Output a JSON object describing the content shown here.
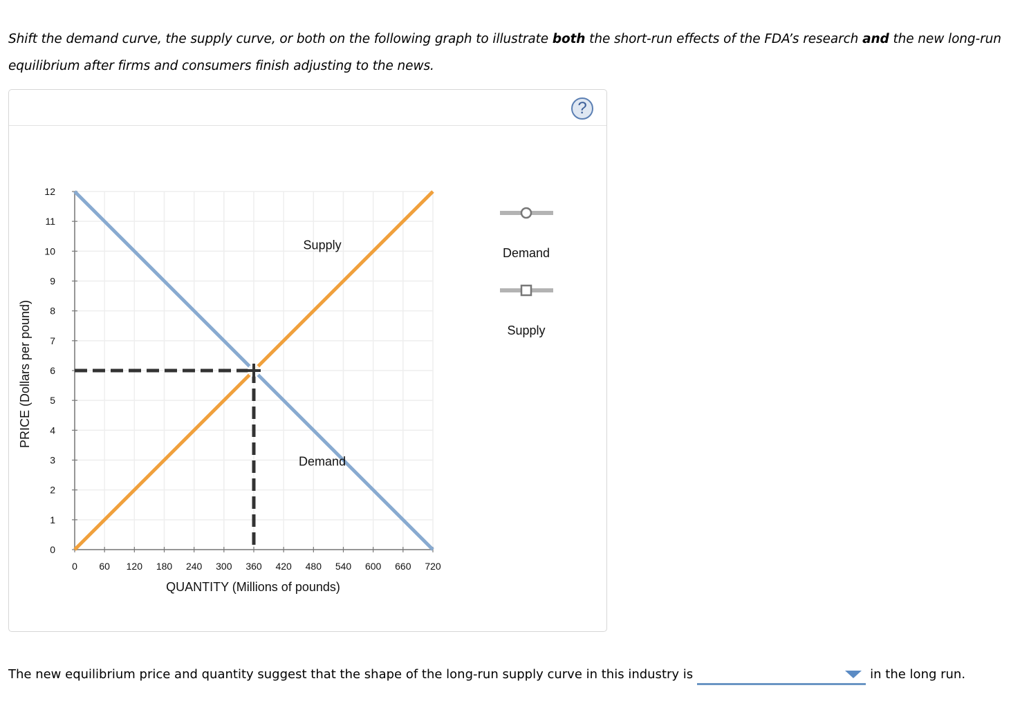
{
  "instructions": {
    "part1": "Shift the demand curve, the supply curve, or both on the following graph to illustrate ",
    "bold1": "both",
    "part2": " the short-run effects of the FDA’s research ",
    "bold2": "and",
    "part3": " the new long-run equilibrium after firms and consumers finish adjusting to the news."
  },
  "panel": {
    "help_glyph": "?",
    "help_icon": "question-mark-circle-icon"
  },
  "legend": {
    "items": [
      {
        "label": "Demand",
        "marker": "circle",
        "icon": "demand-tool-circle-icon"
      },
      {
        "label": "Supply",
        "marker": "square",
        "icon": "supply-tool-square-icon"
      }
    ]
  },
  "chart_data": {
    "type": "line",
    "title": "",
    "xlabel": "QUANTITY (Millions of pounds)",
    "ylabel": "PRICE (Dollars per pound)",
    "xlim": [
      0,
      720
    ],
    "ylim": [
      0,
      12
    ],
    "x_ticks": [
      0,
      60,
      120,
      180,
      240,
      300,
      360,
      420,
      480,
      540,
      600,
      660,
      720
    ],
    "y_ticks": [
      0,
      1,
      2,
      3,
      4,
      5,
      6,
      7,
      8,
      9,
      10,
      11,
      12
    ],
    "grid": true,
    "series": [
      {
        "name": "Demand",
        "color": "#88aad0",
        "points": [
          [
            0,
            12
          ],
          [
            720,
            0
          ]
        ],
        "label": "Demand",
        "label_at": [
          570,
          3
        ]
      },
      {
        "name": "Supply",
        "color": "#f0a03c",
        "points": [
          [
            0,
            0
          ],
          [
            720,
            12
          ]
        ],
        "label": "Supply",
        "label_at": [
          570,
          10
        ]
      }
    ],
    "equilibrium": {
      "x": 360,
      "y": 6,
      "color": "#333333",
      "dashed_guides": true
    },
    "legend_position": "right"
  },
  "question": {
    "before": "The new equilibrium price and quantity suggest that the shape of the long-run supply curve in this industry is",
    "dropdown_value": "",
    "after": "in the long run."
  }
}
